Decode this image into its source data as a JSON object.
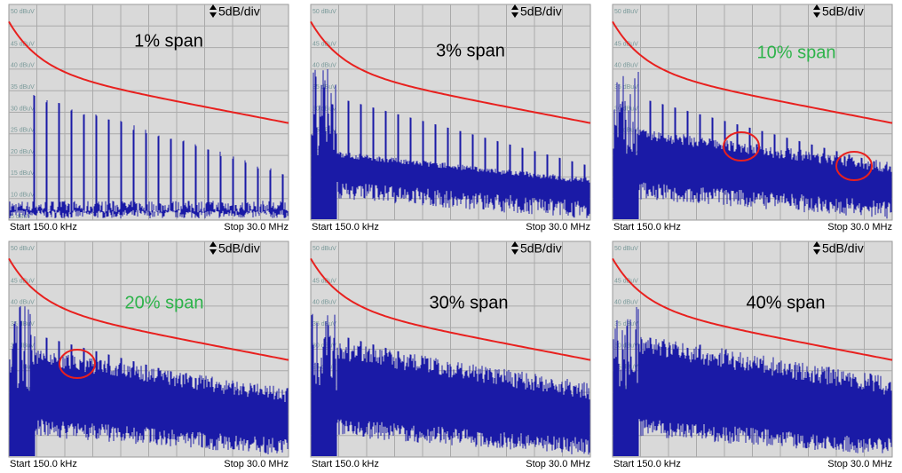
{
  "panels": [
    {
      "title": "1% span",
      "title_color": "#000000",
      "scale": "5dB/div",
      "start": "Start 150.0 kHz",
      "stop": "Stop 30.0 MHz"
    },
    {
      "title": "3% span",
      "title_color": "#000000",
      "scale": "5dB/div",
      "start": "Start 150.0 kHz",
      "stop": "Stop 30.0 MHz"
    },
    {
      "title": "10% span",
      "title_color": "#2db34a",
      "scale": "5dB/div",
      "start": "Start 150.0 kHz",
      "stop": "Stop 30.0 MHz"
    },
    {
      "title": "20% span",
      "title_color": "#2db34a",
      "scale": "5dB/div",
      "start": "Start 150.0 kHz",
      "stop": "Stop 30.0 MHz"
    },
    {
      "title": "30% span",
      "title_color": "#000000",
      "scale": "5dB/div",
      "start": "Start 150.0 kHz",
      "stop": "Stop 30.0 MHz"
    },
    {
      "title": "40% span",
      "title_color": "#000000",
      "scale": "5dB/div",
      "start": "Start 150.0 kHz",
      "stop": "Stop 30.0 MHz"
    }
  ],
  "y_labels": [
    "50 dBuV",
    "45 dBuV",
    "40 dBuV",
    "35 dBuV",
    "30 dBuV",
    "25 dBuV",
    "20 dBuV",
    "15 dBuV",
    "10 dBuV",
    "5 dBuV"
  ]
}
